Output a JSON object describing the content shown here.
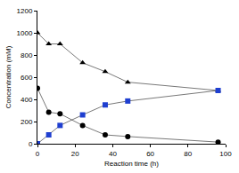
{
  "chart_data": {
    "type": "line",
    "x_label": "Reaction time (h)",
    "y_label": "Concentration (mM)",
    "x": [
      0,
      6,
      12,
      24,
      36,
      48,
      96
    ],
    "series": [
      {
        "color": "#000000",
        "marker": "triangle-up",
        "values": [
          1000,
          900,
          900,
          730,
          650,
          555,
          480
        ]
      },
      {
        "color": "#000000",
        "marker": "circle",
        "values": [
          500,
          285,
          270,
          165,
          80,
          65,
          15
        ]
      },
      {
        "color": "#1f3fd0",
        "marker": "square",
        "values": [
          0,
          80,
          165,
          260,
          350,
          385,
          480
        ]
      }
    ],
    "xlim": [
      0,
      100
    ],
    "xticks": [
      0,
      20,
      40,
      60,
      80,
      100
    ],
    "ylim": [
      0,
      1200
    ],
    "yticks": [
      0,
      200,
      400,
      600,
      800,
      1000,
      1200
    ],
    "grid": false
  }
}
